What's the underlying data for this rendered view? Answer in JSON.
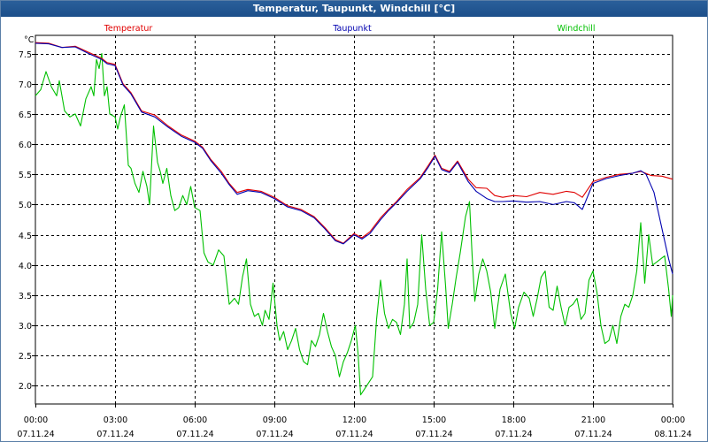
{
  "window": {
    "title": "Temperatur, Taupunkt, Windchill [°C]"
  },
  "chart_data": {
    "type": "line",
    "title": "Temperatur, Taupunkt, Windchill [°C]",
    "ylabel": "°C",
    "ylim": [
      1.7,
      7.8
    ],
    "xlim": [
      0,
      24
    ],
    "y_ticks": [
      "2.0",
      "2.5",
      "3.0",
      "3.5",
      "4.0",
      "4.5",
      "5.0",
      "5.5",
      "6.0",
      "6.5",
      "7.0",
      "7.5"
    ],
    "y_tick_values": [
      2.0,
      2.5,
      3.0,
      3.5,
      4.0,
      4.5,
      5.0,
      5.5,
      6.0,
      6.5,
      7.0,
      7.5
    ],
    "x_ticks": [
      {
        "time": "00:00",
        "date": "07.11.24",
        "hour": 0
      },
      {
        "time": "03:00",
        "date": "07.11.24",
        "hour": 3
      },
      {
        "time": "06:00",
        "date": "07.11.24",
        "hour": 6
      },
      {
        "time": "09:00",
        "date": "07.11.24",
        "hour": 9
      },
      {
        "time": "12:00",
        "date": "07.11.24",
        "hour": 12
      },
      {
        "time": "15:00",
        "date": "07.11.24",
        "hour": 15
      },
      {
        "time": "18:00",
        "date": "07.11.24",
        "hour": 18
      },
      {
        "time": "21:00",
        "date": "07.11.24",
        "hour": 21
      },
      {
        "time": "00:00",
        "date": "08.11.24",
        "hour": 24
      }
    ],
    "grid": true,
    "legend_position": "top",
    "series": [
      {
        "name": "Temperatur",
        "color": "#e00000",
        "points": [
          [
            0,
            7.68
          ],
          [
            0.5,
            7.67
          ],
          [
            1,
            7.6
          ],
          [
            1.5,
            7.62
          ],
          [
            2,
            7.52
          ],
          [
            2.5,
            7.42
          ],
          [
            2.7,
            7.35
          ],
          [
            3,
            7.32
          ],
          [
            3.3,
            7.0
          ],
          [
            3.6,
            6.85
          ],
          [
            4,
            6.55
          ],
          [
            4.5,
            6.48
          ],
          [
            5,
            6.3
          ],
          [
            5.5,
            6.15
          ],
          [
            6,
            6.05
          ],
          [
            6.3,
            5.95
          ],
          [
            6.6,
            5.75
          ],
          [
            7,
            5.55
          ],
          [
            7.3,
            5.35
          ],
          [
            7.6,
            5.2
          ],
          [
            8,
            5.25
          ],
          [
            8.5,
            5.22
          ],
          [
            9,
            5.12
          ],
          [
            9.5,
            4.98
          ],
          [
            10,
            4.92
          ],
          [
            10.5,
            4.8
          ],
          [
            10.9,
            4.62
          ],
          [
            11.3,
            4.42
          ],
          [
            11.6,
            4.36
          ],
          [
            12,
            4.52
          ],
          [
            12.3,
            4.45
          ],
          [
            12.6,
            4.55
          ],
          [
            13,
            4.78
          ],
          [
            13.3,
            4.92
          ],
          [
            13.6,
            5.05
          ],
          [
            14,
            5.25
          ],
          [
            14.5,
            5.45
          ],
          [
            14.8,
            5.65
          ],
          [
            15.05,
            5.82
          ],
          [
            15.3,
            5.6
          ],
          [
            15.6,
            5.55
          ],
          [
            15.9,
            5.72
          ],
          [
            16.3,
            5.42
          ],
          [
            16.6,
            5.28
          ],
          [
            17,
            5.27
          ],
          [
            17.3,
            5.15
          ],
          [
            17.6,
            5.12
          ],
          [
            18,
            5.15
          ],
          [
            18.5,
            5.13
          ],
          [
            19,
            5.2
          ],
          [
            19.5,
            5.17
          ],
          [
            20,
            5.22
          ],
          [
            20.3,
            5.2
          ],
          [
            20.6,
            5.12
          ],
          [
            21,
            5.38
          ],
          [
            21.5,
            5.45
          ],
          [
            22,
            5.5
          ],
          [
            22.5,
            5.52
          ],
          [
            22.8,
            5.55
          ],
          [
            23.2,
            5.48
          ],
          [
            23.6,
            5.47
          ],
          [
            24,
            5.42
          ]
        ]
      },
      {
        "name": "Taupunkt",
        "color": "#0000b0",
        "points": [
          [
            0,
            7.67
          ],
          [
            0.5,
            7.66
          ],
          [
            1,
            7.6
          ],
          [
            1.5,
            7.61
          ],
          [
            2,
            7.5
          ],
          [
            2.5,
            7.4
          ],
          [
            2.7,
            7.33
          ],
          [
            3,
            7.3
          ],
          [
            3.3,
            6.98
          ],
          [
            3.6,
            6.83
          ],
          [
            4,
            6.53
          ],
          [
            4.5,
            6.45
          ],
          [
            5,
            6.28
          ],
          [
            5.5,
            6.13
          ],
          [
            6,
            6.03
          ],
          [
            6.3,
            5.93
          ],
          [
            6.6,
            5.73
          ],
          [
            7,
            5.52
          ],
          [
            7.3,
            5.33
          ],
          [
            7.6,
            5.17
          ],
          [
            8,
            5.23
          ],
          [
            8.5,
            5.2
          ],
          [
            9,
            5.1
          ],
          [
            9.5,
            4.96
          ],
          [
            10,
            4.9
          ],
          [
            10.5,
            4.78
          ],
          [
            10.9,
            4.6
          ],
          [
            11.3,
            4.4
          ],
          [
            11.6,
            4.35
          ],
          [
            12,
            4.5
          ],
          [
            12.3,
            4.43
          ],
          [
            12.6,
            4.52
          ],
          [
            13,
            4.75
          ],
          [
            13.3,
            4.9
          ],
          [
            13.6,
            5.03
          ],
          [
            14,
            5.22
          ],
          [
            14.5,
            5.43
          ],
          [
            14.8,
            5.62
          ],
          [
            15.05,
            5.8
          ],
          [
            15.3,
            5.58
          ],
          [
            15.6,
            5.53
          ],
          [
            15.9,
            5.7
          ],
          [
            16.3,
            5.38
          ],
          [
            16.6,
            5.22
          ],
          [
            17,
            5.1
          ],
          [
            17.3,
            5.05
          ],
          [
            17.6,
            5.05
          ],
          [
            18,
            5.06
          ],
          [
            18.5,
            5.04
          ],
          [
            19,
            5.05
          ],
          [
            19.5,
            5.0
          ],
          [
            20,
            5.05
          ],
          [
            20.3,
            5.03
          ],
          [
            20.6,
            4.92
          ],
          [
            21,
            5.35
          ],
          [
            21.5,
            5.43
          ],
          [
            22,
            5.48
          ],
          [
            22.5,
            5.52
          ],
          [
            22.8,
            5.56
          ],
          [
            23.0,
            5.5
          ],
          [
            23.3,
            5.2
          ],
          [
            23.6,
            4.6
          ],
          [
            23.85,
            4.1
          ],
          [
            24,
            3.85
          ]
        ]
      },
      {
        "name": "Windchill",
        "color": "#00c000",
        "points": [
          [
            0,
            6.8
          ],
          [
            0.2,
            6.9
          ],
          [
            0.4,
            7.2
          ],
          [
            0.6,
            6.95
          ],
          [
            0.8,
            6.8
          ],
          [
            0.9,
            7.05
          ],
          [
            1.1,
            6.55
          ],
          [
            1.3,
            6.45
          ],
          [
            1.5,
            6.5
          ],
          [
            1.7,
            6.3
          ],
          [
            1.9,
            6.75
          ],
          [
            2.1,
            6.95
          ],
          [
            2.2,
            6.8
          ],
          [
            2.3,
            7.4
          ],
          [
            2.4,
            7.25
          ],
          [
            2.5,
            7.5
          ],
          [
            2.6,
            6.8
          ],
          [
            2.7,
            6.95
          ],
          [
            2.8,
            6.5
          ],
          [
            3,
            6.45
          ],
          [
            3.1,
            6.25
          ],
          [
            3.2,
            6.45
          ],
          [
            3.35,
            6.65
          ],
          [
            3.5,
            5.65
          ],
          [
            3.6,
            5.6
          ],
          [
            3.75,
            5.35
          ],
          [
            3.9,
            5.2
          ],
          [
            4.05,
            5.55
          ],
          [
            4.2,
            5.3
          ],
          [
            4.3,
            5.0
          ],
          [
            4.45,
            6.3
          ],
          [
            4.6,
            5.7
          ],
          [
            4.7,
            5.55
          ],
          [
            4.8,
            5.35
          ],
          [
            4.95,
            5.6
          ],
          [
            5.1,
            5.15
          ],
          [
            5.25,
            4.9
          ],
          [
            5.4,
            4.95
          ],
          [
            5.55,
            5.15
          ],
          [
            5.7,
            5.0
          ],
          [
            5.85,
            5.3
          ],
          [
            6,
            4.95
          ],
          [
            6.2,
            4.9
          ],
          [
            6.35,
            4.2
          ],
          [
            6.5,
            4.05
          ],
          [
            6.7,
            4.0
          ],
          [
            6.9,
            4.25
          ],
          [
            7.1,
            4.15
          ],
          [
            7.3,
            3.35
          ],
          [
            7.5,
            3.45
          ],
          [
            7.65,
            3.35
          ],
          [
            7.8,
            3.8
          ],
          [
            7.95,
            4.1
          ],
          [
            8.1,
            3.35
          ],
          [
            8.25,
            3.15
          ],
          [
            8.4,
            3.2
          ],
          [
            8.55,
            3.0
          ],
          [
            8.65,
            3.25
          ],
          [
            8.8,
            3.1
          ],
          [
            8.95,
            3.7
          ],
          [
            9.1,
            3.0
          ],
          [
            9.2,
            2.75
          ],
          [
            9.35,
            2.9
          ],
          [
            9.5,
            2.6
          ],
          [
            9.65,
            2.75
          ],
          [
            9.8,
            2.95
          ],
          [
            9.95,
            2.6
          ],
          [
            10.1,
            2.4
          ],
          [
            10.25,
            2.35
          ],
          [
            10.4,
            2.75
          ],
          [
            10.55,
            2.65
          ],
          [
            10.7,
            2.85
          ],
          [
            10.85,
            3.2
          ],
          [
            11,
            2.9
          ],
          [
            11.15,
            2.65
          ],
          [
            11.3,
            2.5
          ],
          [
            11.45,
            2.15
          ],
          [
            11.6,
            2.4
          ],
          [
            11.75,
            2.55
          ],
          [
            11.9,
            2.75
          ],
          [
            12.05,
            3.0
          ],
          [
            12.15,
            2.55
          ],
          [
            12.25,
            1.85
          ],
          [
            12.4,
            1.95
          ],
          [
            12.55,
            2.05
          ],
          [
            12.7,
            2.15
          ],
          [
            12.85,
            3.1
          ],
          [
            13,
            3.75
          ],
          [
            13.15,
            3.2
          ],
          [
            13.3,
            2.95
          ],
          [
            13.45,
            3.1
          ],
          [
            13.6,
            3.05
          ],
          [
            13.75,
            2.85
          ],
          [
            13.9,
            3.35
          ],
          [
            14,
            4.1
          ],
          [
            14.1,
            2.95
          ],
          [
            14.25,
            3.05
          ],
          [
            14.4,
            3.35
          ],
          [
            14.55,
            4.5
          ],
          [
            14.7,
            3.6
          ],
          [
            14.85,
            3.0
          ],
          [
            15,
            3.05
          ],
          [
            15.15,
            3.6
          ],
          [
            15.3,
            4.55
          ],
          [
            15.45,
            3.65
          ],
          [
            15.55,
            2.95
          ],
          [
            15.7,
            3.35
          ],
          [
            15.85,
            3.8
          ],
          [
            16,
            4.2
          ],
          [
            16.2,
            4.8
          ],
          [
            16.35,
            5.05
          ],
          [
            16.45,
            4.15
          ],
          [
            16.55,
            3.4
          ],
          [
            16.7,
            3.85
          ],
          [
            16.85,
            4.1
          ],
          [
            17,
            3.9
          ],
          [
            17.15,
            3.55
          ],
          [
            17.3,
            2.95
          ],
          [
            17.5,
            3.6
          ],
          [
            17.7,
            3.85
          ],
          [
            17.9,
            3.2
          ],
          [
            18.05,
            2.95
          ],
          [
            18.2,
            3.3
          ],
          [
            18.4,
            3.55
          ],
          [
            18.6,
            3.45
          ],
          [
            18.75,
            3.15
          ],
          [
            18.9,
            3.45
          ],
          [
            19.05,
            3.8
          ],
          [
            19.2,
            3.9
          ],
          [
            19.35,
            3.3
          ],
          [
            19.5,
            3.25
          ],
          [
            19.65,
            3.65
          ],
          [
            19.8,
            3.3
          ],
          [
            19.95,
            3.0
          ],
          [
            20.1,
            3.3
          ],
          [
            20.25,
            3.35
          ],
          [
            20.4,
            3.45
          ],
          [
            20.55,
            3.1
          ],
          [
            20.7,
            3.2
          ],
          [
            20.85,
            3.75
          ],
          [
            21,
            3.9
          ],
          [
            21.15,
            3.55
          ],
          [
            21.3,
            3.0
          ],
          [
            21.45,
            2.7
          ],
          [
            21.6,
            2.75
          ],
          [
            21.75,
            3.0
          ],
          [
            21.9,
            2.7
          ],
          [
            22.05,
            3.15
          ],
          [
            22.2,
            3.35
          ],
          [
            22.35,
            3.3
          ],
          [
            22.5,
            3.5
          ],
          [
            22.65,
            3.9
          ],
          [
            22.8,
            4.7
          ],
          [
            22.95,
            3.7
          ],
          [
            23.1,
            4.5
          ],
          [
            23.25,
            4.0
          ],
          [
            23.4,
            4.05
          ],
          [
            23.55,
            4.1
          ],
          [
            23.7,
            4.15
          ],
          [
            23.85,
            3.6
          ],
          [
            23.95,
            3.15
          ],
          [
            24,
            3.5
          ]
        ]
      }
    ]
  }
}
